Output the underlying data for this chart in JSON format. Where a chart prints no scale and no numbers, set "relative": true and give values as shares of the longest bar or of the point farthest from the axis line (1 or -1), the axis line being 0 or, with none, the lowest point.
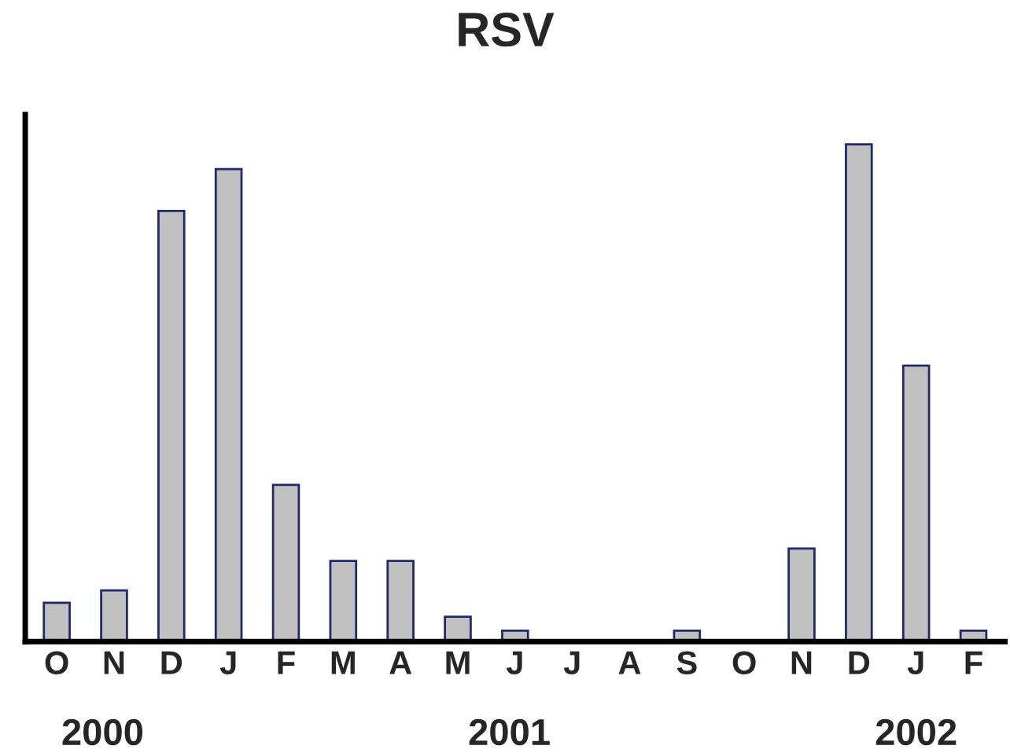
{
  "chart_data": {
    "type": "bar",
    "title": "RSV",
    "relative": true,
    "categories": [
      "O",
      "N",
      "D",
      "J",
      "F",
      "M",
      "A",
      "M",
      "J",
      "J",
      "A",
      "S",
      "O",
      "N",
      "D",
      "J",
      "F"
    ],
    "values": [
      0.078,
      0.103,
      0.866,
      0.95,
      0.315,
      0.162,
      0.162,
      0.05,
      0.022,
      0,
      0,
      0.022,
      0,
      0.187,
      1,
      0.555,
      0.022
    ],
    "color": "#c0c0c0",
    "annotations": [
      "2000",
      "2001",
      "2002"
    ],
    "grid": false,
    "legend": false
  }
}
